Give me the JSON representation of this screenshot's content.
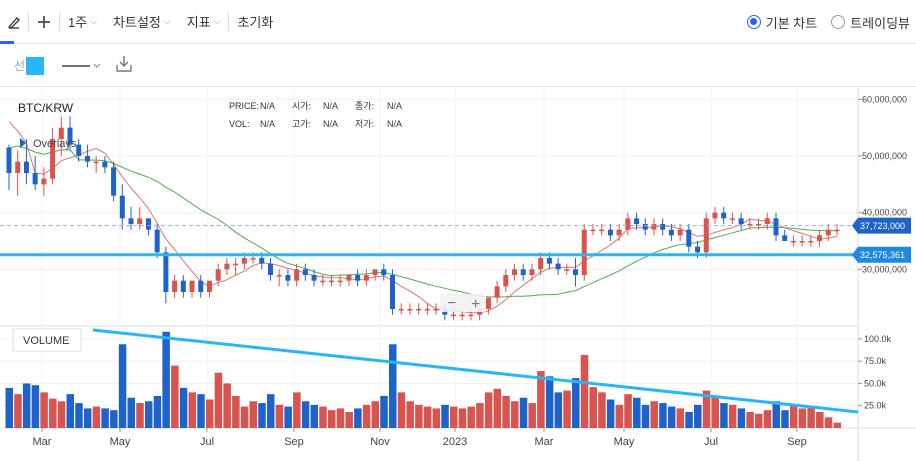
{
  "toolbar": {
    "interval": "1주",
    "chart_settings": "차트설정",
    "indicators": "지표",
    "reset": "초기화",
    "chart_mode_basic": "기본 차트",
    "chart_mode_tradingview": "트레이딩뷰",
    "selected_mode": "기본 차트"
  },
  "drawing_toolbar": {
    "line_label": "선",
    "line_color": "#29b6f6"
  },
  "legend": {
    "symbol": "BTC/KRW",
    "overlays_label": "Overlays",
    "price_label": "PRICE:",
    "price_value": "N/A",
    "open_label": "시가:",
    "open_value": "N/A",
    "close_label": "종가:",
    "close_value": "N/A",
    "vol_label": "VOL:",
    "vol_value": "N/A",
    "high_label": "고가:",
    "high_value": "N/A",
    "low_label": "저가:",
    "low_value": "N/A"
  },
  "zoom": {
    "minus": "−",
    "plus": "+"
  },
  "volume_label": "VOLUME",
  "price_axis": {
    "ticks": [
      "60,000,000",
      "50,000,000",
      "40,000,000",
      "30,000,000"
    ],
    "current_price_label": "37,723,000",
    "hline_label": "32,575,361"
  },
  "volume_axis": {
    "ticks": [
      "100.0k",
      "75.0k",
      "50.0k",
      "25.0k"
    ]
  },
  "time_axis": {
    "ticks": [
      "Mar",
      "May",
      "Jul",
      "Sep",
      "Nov",
      "2023",
      "Mar",
      "May",
      "Jul",
      "Sep"
    ]
  },
  "colors": {
    "up": "#d9534f",
    "down": "#1e63c9",
    "ma_short": "#e57373",
    "ma_long": "#4caf50",
    "drawing": "#29b6f6",
    "accent": "#2962ff"
  },
  "chart_data": {
    "type": "candlestick",
    "price_ylim": [
      20000000,
      62000000
    ],
    "volume_ylim": [
      0,
      110000
    ],
    "current_price": 37723000,
    "horizontal_line": 32575361,
    "candles": [
      [
        51.5,
        52,
        44,
        47,
        45
      ],
      [
        47,
        51,
        43,
        49,
        38
      ],
      [
        49,
        53,
        45,
        47,
        50
      ],
      [
        47,
        50,
        44,
        45,
        48
      ],
      [
        45,
        48,
        43,
        46,
        40
      ],
      [
        46,
        55,
        45,
        53,
        33
      ],
      [
        53,
        57,
        50,
        55,
        30
      ],
      [
        55,
        57,
        51,
        52,
        38
      ],
      [
        52,
        53,
        49,
        50,
        28
      ],
      [
        50,
        52,
        48,
        49,
        22
      ],
      [
        49,
        50,
        47,
        49,
        24
      ],
      [
        49,
        50,
        47,
        48,
        22
      ],
      [
        48,
        49,
        42,
        43,
        20
      ],
      [
        43,
        45,
        37,
        39,
        94
      ],
      [
        39,
        41,
        37,
        38,
        34
      ],
      [
        38,
        41,
        37,
        39,
        28
      ],
      [
        39,
        39,
        36,
        37,
        30
      ],
      [
        37,
        38,
        32,
        33,
        36
      ],
      [
        33,
        34,
        24,
        26,
        108
      ],
      [
        26,
        29,
        25,
        28,
        70
      ],
      [
        28,
        29,
        25,
        26,
        45
      ],
      [
        26,
        28,
        25,
        28,
        40
      ],
      [
        28,
        29,
        25,
        26,
        38
      ],
      [
        26,
        28,
        25,
        28,
        32
      ],
      [
        28,
        31,
        27,
        30,
        62
      ],
      [
        30,
        32,
        29,
        31,
        50
      ],
      [
        31,
        32,
        29,
        31,
        36
      ],
      [
        31,
        33,
        30,
        32,
        24
      ],
      [
        32,
        33,
        31,
        32,
        30
      ],
      [
        32,
        33,
        30,
        31,
        28
      ],
      [
        31,
        32,
        28,
        29,
        38
      ],
      [
        29,
        30,
        27,
        29,
        26
      ],
      [
        29,
        30,
        27,
        28,
        24
      ],
      [
        28,
        31,
        27,
        30,
        40
      ],
      [
        30,
        31,
        28,
        29,
        30
      ],
      [
        29,
        30,
        27,
        28,
        26
      ],
      [
        28,
        29,
        27,
        28,
        24
      ],
      [
        28,
        29,
        27,
        28,
        20
      ],
      [
        28,
        29,
        27,
        28,
        22
      ],
      [
        28,
        29,
        27,
        29,
        18
      ],
      [
        29,
        30,
        27,
        28,
        22
      ],
      [
        28,
        30,
        27,
        29,
        26
      ],
      [
        29,
        30,
        28,
        30,
        30
      ],
      [
        30,
        31,
        28,
        29,
        36
      ],
      [
        29,
        30,
        22,
        23,
        94
      ],
      [
        23,
        24,
        22,
        23,
        40
      ],
      [
        23,
        24,
        22,
        23,
        30
      ],
      [
        23,
        24,
        22,
        23,
        26
      ],
      [
        23,
        24,
        22,
        23,
        24
      ],
      [
        23,
        24,
        22,
        23,
        22
      ],
      [
        23,
        24,
        21,
        22,
        26
      ],
      [
        22,
        23,
        21,
        22,
        24
      ],
      [
        22,
        23,
        21,
        22,
        22
      ],
      [
        22,
        23,
        21,
        22,
        24
      ],
      [
        22,
        24,
        21,
        23,
        28
      ],
      [
        23,
        25,
        22,
        25,
        40
      ],
      [
        25,
        28,
        24,
        27,
        44
      ],
      [
        27,
        30,
        26,
        29,
        36
      ],
      [
        29,
        31,
        28,
        30,
        30
      ],
      [
        30,
        31,
        28,
        29,
        34
      ],
      [
        29,
        31,
        28,
        30,
        28
      ],
      [
        30,
        33,
        29,
        32,
        64
      ],
      [
        32,
        33,
        30,
        31,
        58
      ],
      [
        31,
        32,
        29,
        30,
        40
      ],
      [
        30,
        31,
        29,
        30,
        42
      ],
      [
        30,
        32,
        27,
        29,
        56
      ],
      [
        29,
        38,
        28,
        37,
        82
      ],
      [
        37,
        38,
        36,
        37,
        46
      ],
      [
        37,
        38,
        36,
        37,
        40
      ],
      [
        37,
        38,
        35,
        36,
        32
      ],
      [
        36,
        38,
        35,
        37,
        26
      ],
      [
        37,
        40,
        36,
        39,
        38
      ],
      [
        39,
        40,
        37,
        38,
        34
      ],
      [
        38,
        39,
        36,
        37,
        26
      ],
      [
        37,
        39,
        36,
        38,
        30
      ],
      [
        38,
        39,
        36,
        37,
        28
      ],
      [
        37,
        38,
        35,
        36,
        24
      ],
      [
        36,
        38,
        35,
        37,
        22
      ],
      [
        37,
        38,
        33,
        34,
        18
      ],
      [
        34,
        35,
        32,
        33,
        26
      ],
      [
        33,
        40,
        32,
        39,
        42
      ],
      [
        39,
        41,
        38,
        40,
        36
      ],
      [
        40,
        41,
        38,
        39,
        28
      ],
      [
        39,
        40,
        38,
        39,
        26
      ],
      [
        39,
        40,
        37,
        38,
        22
      ],
      [
        38,
        39,
        37,
        38,
        18
      ],
      [
        38,
        39,
        37,
        38,
        16
      ],
      [
        38,
        40,
        37,
        39,
        20
      ],
      [
        39,
        40,
        35,
        36,
        30
      ],
      [
        36,
        37,
        35,
        35,
        20
      ],
      [
        35,
        36,
        34,
        35,
        26
      ],
      [
        35,
        36,
        34,
        35,
        22
      ],
      [
        35,
        36,
        34,
        35,
        24
      ],
      [
        35,
        37,
        34,
        36,
        18
      ],
      [
        36,
        38,
        35,
        37,
        12
      ],
      [
        37,
        38,
        36,
        37,
        6
      ]
    ]
  }
}
